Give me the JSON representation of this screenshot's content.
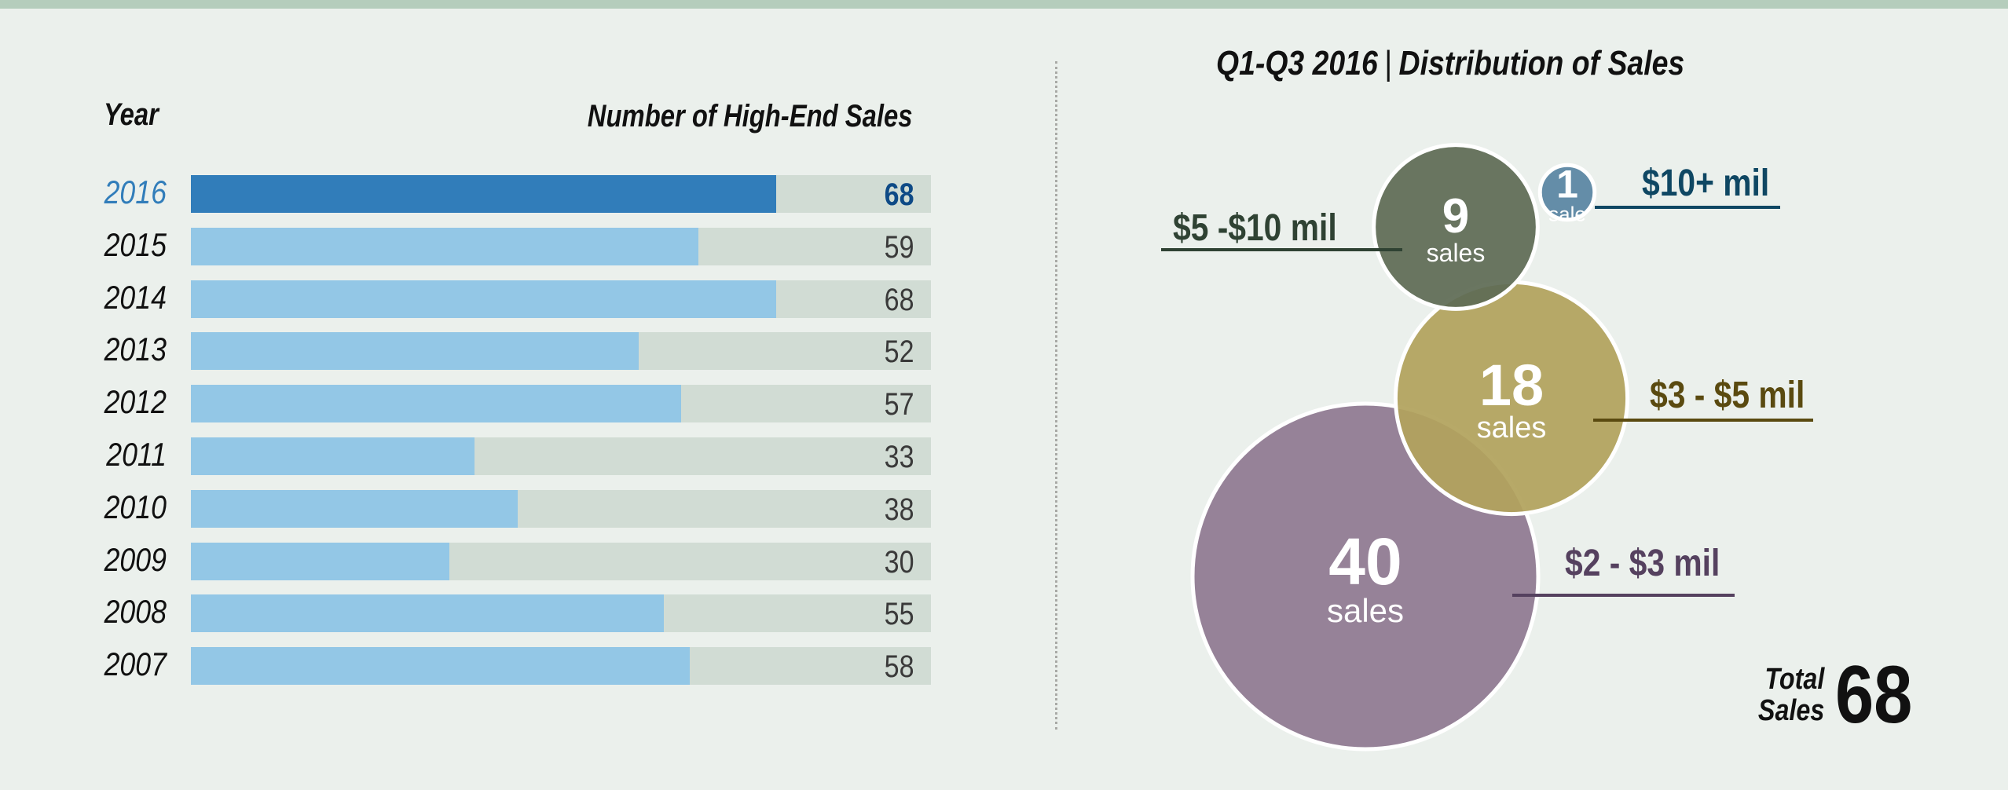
{
  "chart_data": [
    {
      "type": "bar",
      "orientation": "horizontal",
      "title": "",
      "xlabel": "Number of High-End Sales",
      "ylabel": "Year",
      "xlim": [
        0,
        86
      ],
      "categories": [
        "2016",
        "2015",
        "2014",
        "2013",
        "2012",
        "2011",
        "2010",
        "2009",
        "2008",
        "2007"
      ],
      "values": [
        68,
        59,
        68,
        52,
        57,
        33,
        38,
        30,
        55,
        58
      ],
      "highlight": "2016",
      "colors": {
        "highlight": "#317dba",
        "bar": "#93c7e6",
        "track": "#d1dcd4",
        "highlight_text": "#0e4a86"
      }
    },
    {
      "type": "bubble",
      "title_left": "Q1-Q3 2016",
      "title_right": "Distribution of Sales",
      "bubbles": [
        {
          "range": "$2 - $3 mil",
          "count": 40,
          "unit": "sales",
          "color": "#8f7a91",
          "label_color": "#55415f"
        },
        {
          "range": "$3 - $5 mil",
          "count": 18,
          "unit": "sales",
          "color": "#b2a25c",
          "label_color": "#5a4a10"
        },
        {
          "range": "$5 -$10 mil",
          "count": 9,
          "unit": "sales",
          "color": "#5f6c55",
          "label_color": "#2f4233"
        },
        {
          "range": "$10+ mil",
          "count": 1,
          "unit": "sale",
          "color": "#5985a2",
          "label_color": "#0f4763"
        }
      ],
      "total_label_line1": "Total",
      "total_label_line2": "Sales",
      "total_value": "68"
    }
  ],
  "headers": {
    "year": "Year",
    "sales": "Number of High-End Sales"
  }
}
